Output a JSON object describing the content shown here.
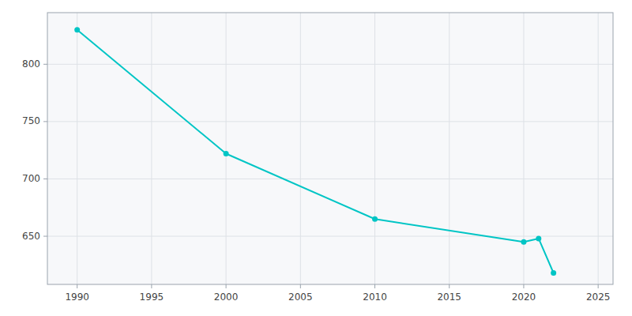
{
  "chart_data": {
    "type": "line",
    "x": [
      1990,
      2000,
      2010,
      2020,
      2021,
      2022
    ],
    "values": [
      830,
      722,
      665,
      645,
      648,
      618
    ],
    "color": "#00C5C5",
    "marker": "circle",
    "xlim": [
      1988,
      2026
    ],
    "ylim": [
      608,
      845
    ],
    "xticks": [
      1990,
      1995,
      2000,
      2005,
      2010,
      2015,
      2020,
      2025
    ],
    "yticks": [
      650,
      700,
      750,
      800
    ],
    "grid": true
  }
}
